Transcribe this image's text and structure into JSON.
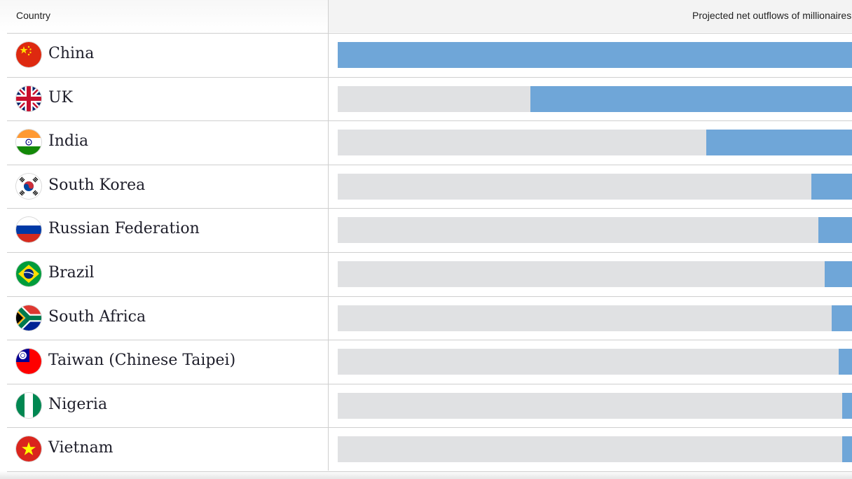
{
  "table": {
    "header_country": "Country",
    "header_projected": "Projected net outflows of millionaires"
  },
  "chart_data": {
    "type": "bar",
    "orientation": "horizontal",
    "title": "",
    "xlabel": "Projected net outflows of millionaires",
    "ylabel": "Country",
    "categories": [
      "China",
      "UK",
      "India",
      "South Korea",
      "Russian Federation",
      "Brazil",
      "South Africa",
      "Taiwan (Chinese Taipei)",
      "Nigeria",
      "Vietnam"
    ],
    "values": [
      15200,
      9500,
      4300,
      1200,
      1000,
      800,
      600,
      400,
      300,
      300
    ],
    "xlim": [
      0,
      15200
    ],
    "bar_color": "#6fa6d8",
    "track_color": "#e0e1e3",
    "grid": false
  },
  "flags": [
    {
      "country": "China",
      "icon": "china-flag-icon"
    },
    {
      "country": "UK",
      "icon": "uk-flag-icon"
    },
    {
      "country": "India",
      "icon": "india-flag-icon"
    },
    {
      "country": "South Korea",
      "icon": "south-korea-flag-icon"
    },
    {
      "country": "Russian Federation",
      "icon": "russia-flag-icon"
    },
    {
      "country": "Brazil",
      "icon": "brazil-flag-icon"
    },
    {
      "country": "South Africa",
      "icon": "south-africa-flag-icon"
    },
    {
      "country": "Taiwan (Chinese Taipei)",
      "icon": "taiwan-flag-icon"
    },
    {
      "country": "Nigeria",
      "icon": "nigeria-flag-icon"
    },
    {
      "country": "Vietnam",
      "icon": "vietnam-flag-icon"
    }
  ]
}
